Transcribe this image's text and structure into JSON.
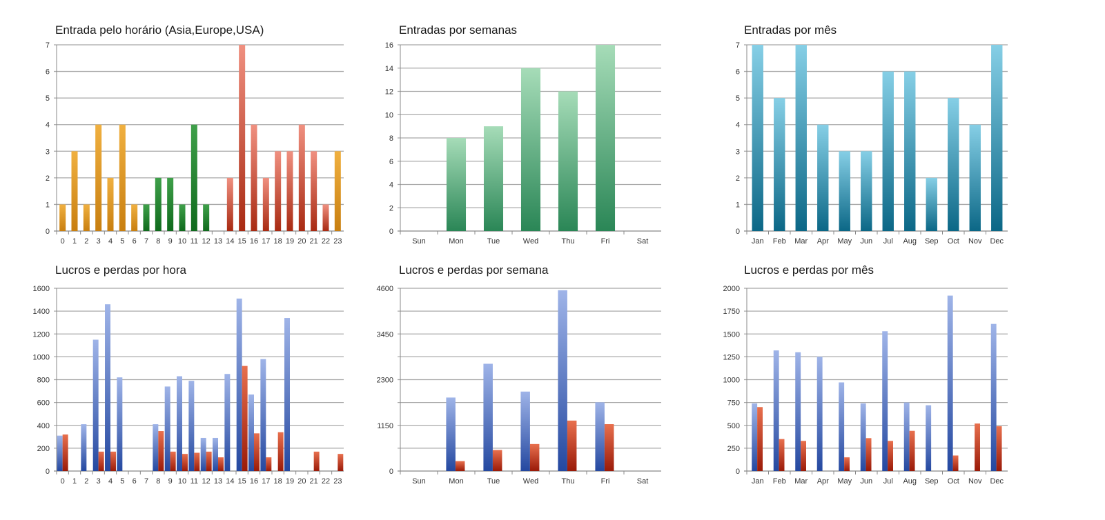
{
  "chart_data": [
    {
      "id": "entries-by-hour",
      "type": "bar",
      "title": "Entrada pelo horário (Asia,Europe,USA)",
      "xlabel": "",
      "ylabel": "",
      "categories": [
        "0",
        "1",
        "2",
        "3",
        "4",
        "5",
        "6",
        "7",
        "8",
        "9",
        "10",
        "11",
        "12",
        "13",
        "14",
        "15",
        "16",
        "17",
        "18",
        "19",
        "20",
        "21",
        "22",
        "23"
      ],
      "series": [
        {
          "name": "Entradas",
          "values": [
            1,
            3,
            1,
            4,
            2,
            4,
            1,
            1,
            2,
            2,
            1,
            4,
            1,
            0,
            2,
            7,
            4,
            2,
            3,
            3,
            4,
            3,
            1,
            3
          ]
        }
      ],
      "session_colors": [
        "asia",
        "asia",
        "asia",
        "asia",
        "asia",
        "asia",
        "asia",
        "europe",
        "europe",
        "europe",
        "europe",
        "europe",
        "europe",
        "europe",
        "usa",
        "usa",
        "usa",
        "usa",
        "usa",
        "usa",
        "usa",
        "usa",
        "usa",
        "asia"
      ],
      "palette": {
        "asia": [
          "#f0b040",
          "#c87f10"
        ],
        "europe": [
          "#3fa04a",
          "#0f6a1c"
        ],
        "usa": [
          "#f09080",
          "#a82a12"
        ]
      },
      "yticks": [
        0,
        1,
        2,
        3,
        4,
        5,
        6,
        7
      ],
      "ylim": [
        0,
        7
      ],
      "grid": true
    },
    {
      "id": "entries-by-weekday",
      "type": "bar",
      "title": "Entradas por semanas",
      "xlabel": "",
      "ylabel": "",
      "categories": [
        "Sun",
        "Mon",
        "Tue",
        "Wed",
        "Thu",
        "Fri",
        "Sat"
      ],
      "series": [
        {
          "name": "Entradas",
          "values": [
            0,
            8,
            9,
            14,
            12,
            16,
            0
          ]
        }
      ],
      "palette": {
        "single": [
          "#a6dcb8",
          "#2a8656"
        ]
      },
      "yticks": [
        0,
        2,
        4,
        6,
        8,
        10,
        12,
        14,
        16
      ],
      "ylim": [
        0,
        16
      ],
      "grid": true
    },
    {
      "id": "entries-by-month",
      "type": "bar",
      "title": "Entradas por mês",
      "xlabel": "",
      "ylabel": "",
      "categories": [
        "Jan",
        "Feb",
        "Mar",
        "Apr",
        "May",
        "Jun",
        "Jul",
        "Aug",
        "Sep",
        "Oct",
        "Nov",
        "Dec"
      ],
      "series": [
        {
          "name": "Entradas",
          "values": [
            7,
            5,
            7,
            4,
            3,
            3,
            6,
            6,
            2,
            5,
            4,
            7
          ]
        }
      ],
      "palette": {
        "single": [
          "#86cfe6",
          "#0b6786"
        ]
      },
      "yticks": [
        0,
        1,
        2,
        3,
        4,
        5,
        6,
        7
      ],
      "ylim": [
        0,
        7
      ],
      "grid": true
    },
    {
      "id": "pnl-by-hour",
      "type": "bar",
      "title": "Lucros e perdas por hora",
      "xlabel": "",
      "ylabel": "",
      "categories": [
        "0",
        "1",
        "2",
        "3",
        "4",
        "5",
        "6",
        "7",
        "8",
        "9",
        "10",
        "11",
        "12",
        "13",
        "14",
        "15",
        "16",
        "17",
        "18",
        "19",
        "20",
        "21",
        "22",
        "23"
      ],
      "series": [
        {
          "name": "Lucros",
          "values": [
            310,
            0,
            410,
            1150,
            1460,
            820,
            0,
            0,
            410,
            740,
            830,
            790,
            290,
            290,
            850,
            1510,
            670,
            980,
            0,
            1340,
            0,
            0,
            0,
            0
          ]
        },
        {
          "name": "Perdas",
          "values": [
            320,
            0,
            0,
            170,
            170,
            0,
            0,
            0,
            350,
            170,
            150,
            160,
            170,
            120,
            0,
            920,
            330,
            120,
            340,
            0,
            0,
            170,
            0,
            150
          ]
        }
      ],
      "palette": {
        "profit": [
          "#9fb4e8",
          "#2448a0"
        ],
        "loss": [
          "#e8704e",
          "#9a1a08"
        ]
      },
      "yticks": [
        0,
        200,
        400,
        600,
        800,
        1000,
        1200,
        1400,
        1600
      ],
      "ylim": [
        0,
        1600
      ],
      "grid": true
    },
    {
      "id": "pnl-by-weekday",
      "type": "bar",
      "title": "Lucros e perdas por semana",
      "xlabel": "",
      "ylabel": "",
      "categories": [
        "Sun",
        "Mon",
        "Tue",
        "Wed",
        "Thu",
        "Fri",
        "Sat"
      ],
      "series": [
        {
          "name": "Lucros",
          "values": [
            0,
            1850,
            2700,
            2000,
            4550,
            1730,
            0
          ]
        },
        {
          "name": "Perdas",
          "values": [
            0,
            250,
            530,
            680,
            1270,
            1180,
            0
          ]
        }
      ],
      "palette": {
        "profit": [
          "#9fb4e8",
          "#2448a0"
        ],
        "loss": [
          "#e8704e",
          "#9a1a08"
        ]
      },
      "yticks": [
        0,
        1150,
        2300,
        3450,
        4600
      ],
      "minor_gridlines": true,
      "ylim": [
        0,
        4600
      ],
      "grid": true
    },
    {
      "id": "pnl-by-month",
      "type": "bar",
      "title": "Lucros e perdas por mês",
      "xlabel": "",
      "ylabel": "",
      "categories": [
        "Jan",
        "Feb",
        "Mar",
        "Apr",
        "May",
        "Jun",
        "Jul",
        "Aug",
        "Sep",
        "Oct",
        "Nov",
        "Dec"
      ],
      "series": [
        {
          "name": "Lucros",
          "values": [
            740,
            1320,
            1300,
            1250,
            970,
            740,
            1530,
            750,
            720,
            1920,
            0,
            1610
          ]
        },
        {
          "name": "Perdas",
          "values": [
            700,
            350,
            330,
            0,
            150,
            360,
            330,
            440,
            0,
            170,
            520,
            490
          ]
        }
      ],
      "palette": {
        "profit": [
          "#9fb4e8",
          "#2448a0"
        ],
        "loss": [
          "#e8704e",
          "#9a1a08"
        ]
      },
      "yticks": [
        0,
        250,
        500,
        750,
        1000,
        1250,
        1500,
        1750,
        2000
      ],
      "ylim": [
        0,
        2000
      ],
      "grid": true
    }
  ]
}
